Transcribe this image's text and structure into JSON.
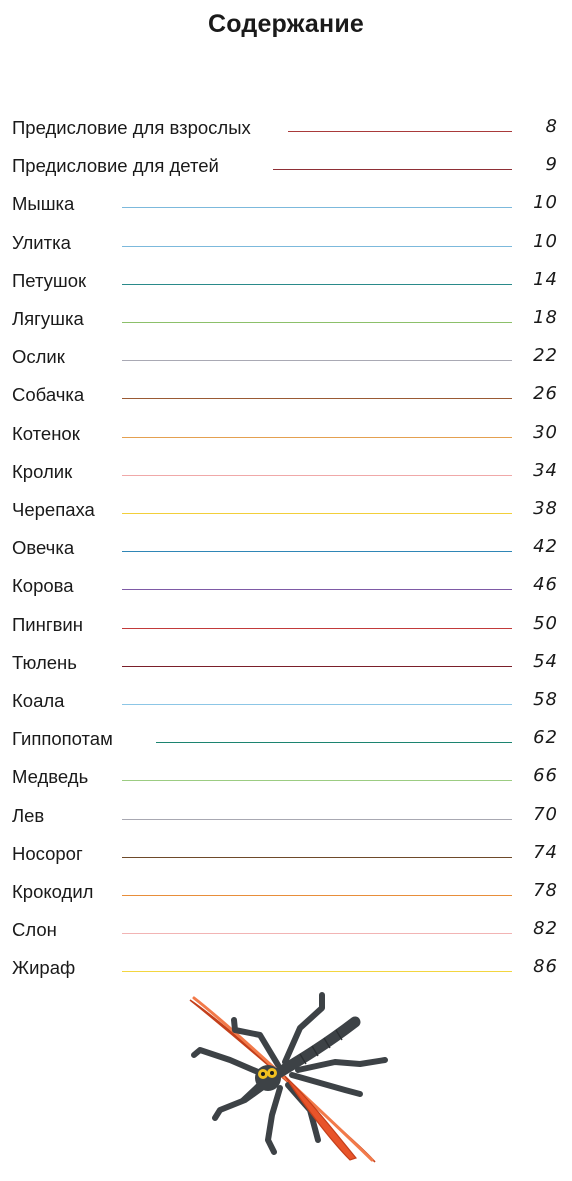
{
  "header": {
    "title": "Содержание"
  },
  "toc": {
    "entries": [
      {
        "title": "Предисловие для взрослых",
        "page": "8",
        "color": "#a93a3a"
      },
      {
        "title": "Предисловие для детей",
        "page": "9",
        "color": "#8e2f36"
      },
      {
        "title": "Мышка",
        "page": "10",
        "color": "#7cb9dc"
      },
      {
        "title": "Улитка",
        "page": "10",
        "color": "#7cb9dc"
      },
      {
        "title": "Петушок",
        "page": "14",
        "color": "#2a8a8a"
      },
      {
        "title": "Лягушка",
        "page": "18",
        "color": "#8cc06a"
      },
      {
        "title": "Ослик",
        "page": "22",
        "color": "#a9a9b4"
      },
      {
        "title": "Собачка",
        "page": "26",
        "color": "#9a5a34"
      },
      {
        "title": "Котенок",
        "page": "30",
        "color": "#e4a050"
      },
      {
        "title": "Кролик",
        "page": "34",
        "color": "#f0a8a8"
      },
      {
        "title": "Черепаха",
        "page": "38",
        "color": "#f2cf3a"
      },
      {
        "title": "Овечка",
        "page": "42",
        "color": "#2f86b6"
      },
      {
        "title": "Корова",
        "page": "46",
        "color": "#7e5aa6"
      },
      {
        "title": "Пингвин",
        "page": "50",
        "color": "#c23a3a"
      },
      {
        "title": "Тюлень",
        "page": "54",
        "color": "#7a1f2a"
      },
      {
        "title": "Коала",
        "page": "58",
        "color": "#8cc6e6"
      },
      {
        "title": "Гиппопотам",
        "page": "62",
        "color": "#1c8470"
      },
      {
        "title": "Медведь",
        "page": "66",
        "color": "#9ccc82"
      },
      {
        "title": "Лев",
        "page": "70",
        "color": "#a8a8b2"
      },
      {
        "title": "Носорог",
        "page": "74",
        "color": "#6e4a2a"
      },
      {
        "title": "Крокодил",
        "page": "78",
        "color": "#e88e3a"
      },
      {
        "title": "Слон",
        "page": "82",
        "color": "#f2b4b4"
      },
      {
        "title": "Жираф",
        "page": "86",
        "color": "#f3d640"
      }
    ]
  },
  "illustration": {
    "icon": "mosquito-plasticine-icon",
    "colors": {
      "body": "#3d4246",
      "wings": "#e8542a",
      "eyes": "#f2c020"
    }
  }
}
